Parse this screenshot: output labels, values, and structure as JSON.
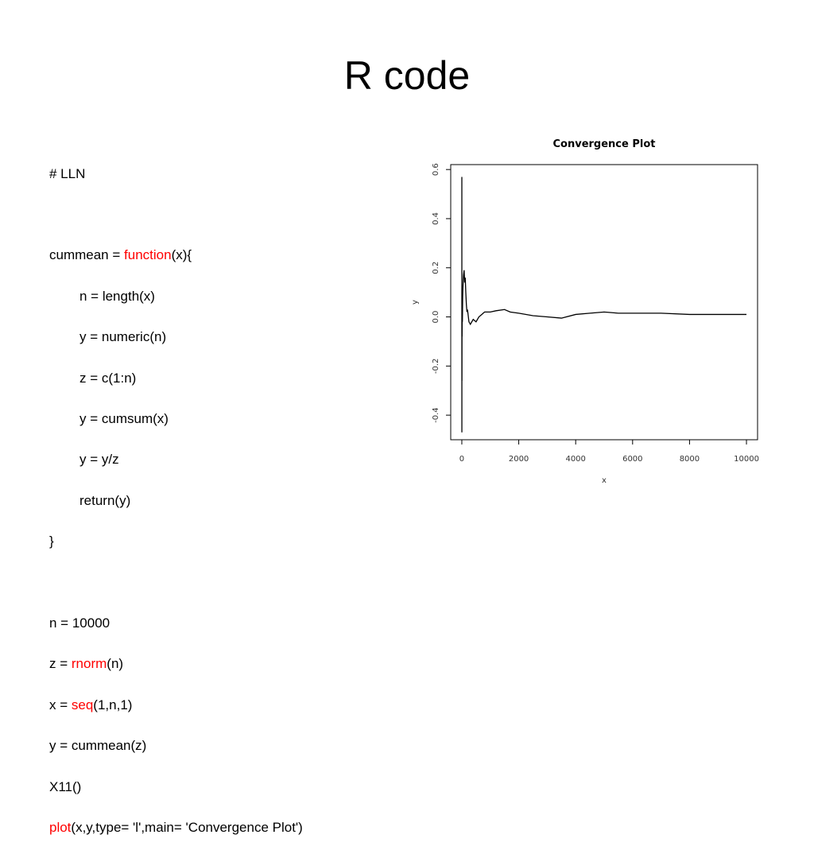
{
  "title": "R code",
  "code": {
    "comment": "# LLN",
    "fn_def": [
      "cummean = ",
      "function",
      "(x){"
    ],
    "body": [
      "n = length(x)",
      "y = numeric(n)",
      "z = c(1:n)",
      "y = cumsum(x)",
      "y = y/z",
      "return(y)"
    ],
    "fn_end": "}",
    "n_line": "n = 10000",
    "z_line": [
      "z = ",
      "rnorm",
      "(n)"
    ],
    "x_line": [
      "x = ",
      "seq",
      "(1,n,1)"
    ],
    "y_line": "y = cummean(z)",
    "x11_line": "X11()",
    "plot_line": [
      "plot",
      "(x,y,type= 'l',main= 'Convergence Plot')"
    ],
    "keyword_color": "#ff0000"
  },
  "chart_data": {
    "type": "line",
    "title": "Convergence Plot",
    "x_label": "x",
    "y_label": "y",
    "x": [
      1,
      2,
      3,
      5,
      8,
      10,
      15,
      20,
      30,
      40,
      50,
      60,
      80,
      100,
      120,
      140,
      160,
      180,
      200,
      250,
      300,
      400,
      500,
      600,
      700,
      800,
      1000,
      1200,
      1500,
      1700,
      2000,
      2500,
      3000,
      3500,
      4000,
      4500,
      5000,
      5500,
      6000,
      7000,
      8000,
      9000,
      10000
    ],
    "values": [
      0.57,
      -0.47,
      0.05,
      -0.26,
      0.1,
      -0.08,
      0.05,
      -0.02,
      0.08,
      0.12,
      0.15,
      0.17,
      0.19,
      0.14,
      0.16,
      0.1,
      0.05,
      0.02,
      0.03,
      -0.02,
      -0.03,
      -0.01,
      -0.02,
      0.0,
      0.01,
      0.02,
      0.02,
      0.025,
      0.03,
      0.02,
      0.015,
      0.005,
      0.0,
      -0.005,
      0.01,
      0.015,
      0.02,
      0.015,
      0.015,
      0.015,
      0.01,
      0.01,
      0.01
    ],
    "color": "#000000",
    "xlim": [
      -390,
      10390
    ],
    "ylim": [
      -0.5,
      0.62
    ],
    "xticks": [
      0,
      2000,
      4000,
      6000,
      8000,
      10000
    ],
    "yticks": [
      -0.4,
      -0.2,
      {
        "value": 0,
        "label": "0.0"
      },
      0.2,
      0.4,
      0.6
    ]
  }
}
